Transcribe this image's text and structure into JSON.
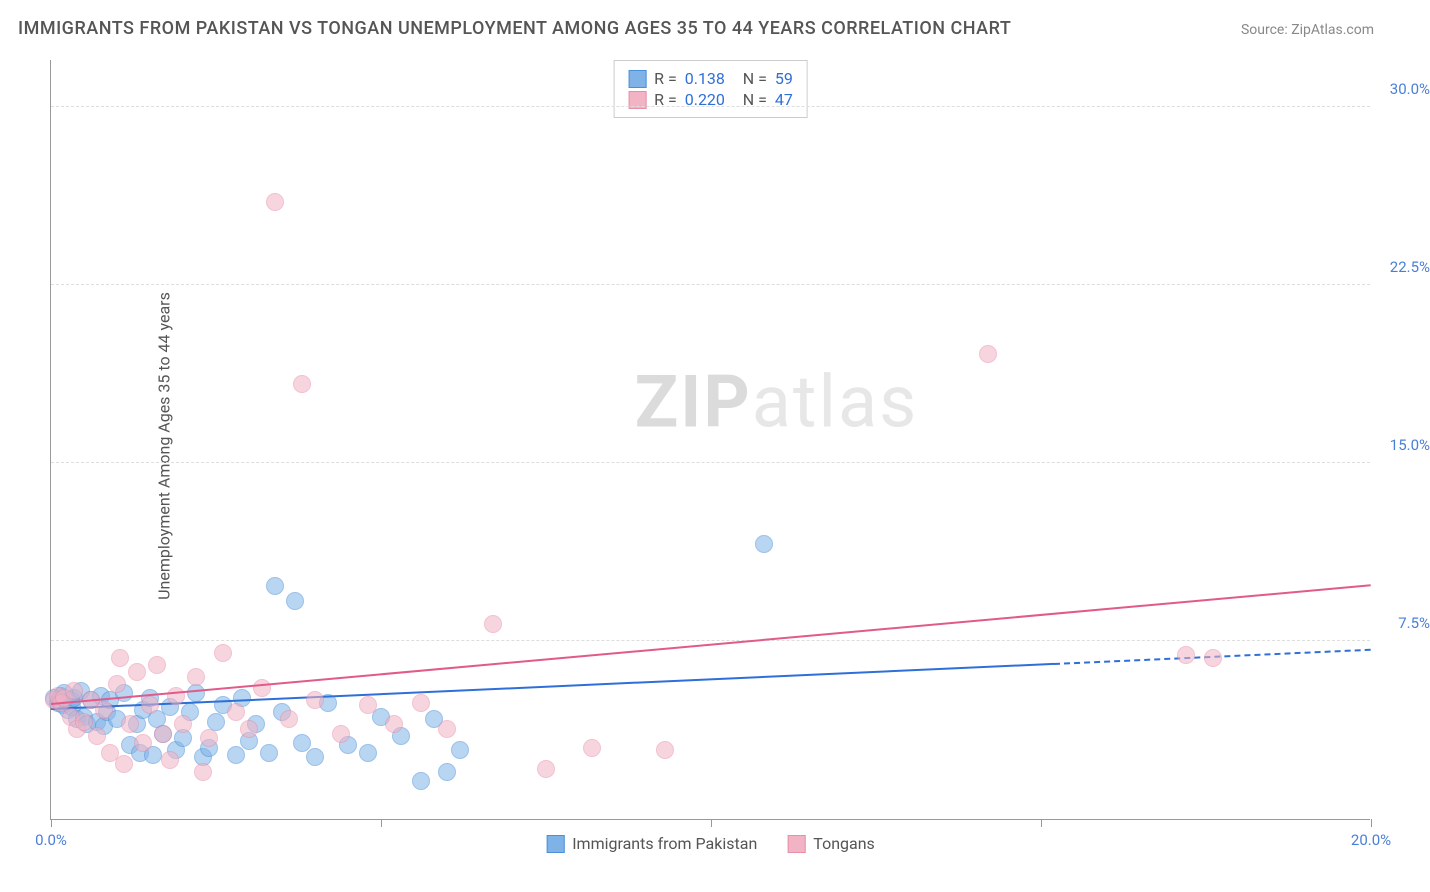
{
  "title": "IMMIGRANTS FROM PAKISTAN VS TONGAN UNEMPLOYMENT AMONG AGES 35 TO 44 YEARS CORRELATION CHART",
  "source": "Source: ZipAtlas.com",
  "ylabel": "Unemployment Among Ages 35 to 44 years",
  "watermark_bold": "ZIP",
  "watermark_light": "atlas",
  "chart": {
    "type": "scatter",
    "background_color": "#ffffff",
    "grid_color": "#dddddd",
    "axis_color": "#999999",
    "xlim": [
      0,
      20
    ],
    "ylim": [
      0,
      32
    ],
    "xticks": [
      0,
      5,
      10,
      15,
      20
    ],
    "xtick_labels": [
      "0.0%",
      "",
      "",
      "",
      "20.0%"
    ],
    "xtick_label_color": "#4a7fd8",
    "yticks": [
      7.5,
      15.0,
      22.5,
      30.0
    ],
    "ytick_labels": [
      "7.5%",
      "15.0%",
      "22.5%",
      "30.0%"
    ],
    "ytick_label_color": "#4a7fd8",
    "marker_radius": 9,
    "marker_opacity": 0.55,
    "series": [
      {
        "name": "Immigrants from Pakistan",
        "color": "#7fb3e8",
        "border": "#4a8fd8",
        "r_label": "R =",
        "r_value": "0.138",
        "n_label": "N =",
        "n_value": "59",
        "trend": {
          "x1": 0,
          "y1": 4.6,
          "x2": 15.2,
          "y2": 6.5,
          "color": "#2e6fd8"
        },
        "trend_dash": {
          "x1": 15.2,
          "y1": 6.5,
          "x2": 20,
          "y2": 7.1,
          "color": "#2e6fd8"
        },
        "points": [
          [
            0.05,
            5.1
          ],
          [
            0.1,
            4.9
          ],
          [
            0.12,
            5.0
          ],
          [
            0.15,
            5.2
          ],
          [
            0.18,
            4.8
          ],
          [
            0.2,
            5.3
          ],
          [
            0.25,
            4.6
          ],
          [
            0.3,
            5.0
          ],
          [
            0.32,
            4.7
          ],
          [
            0.35,
            5.1
          ],
          [
            0.4,
            4.2
          ],
          [
            0.45,
            5.4
          ],
          [
            0.5,
            4.3
          ],
          [
            0.55,
            4.0
          ],
          [
            0.6,
            5.0
          ],
          [
            0.7,
            4.1
          ],
          [
            0.75,
            5.2
          ],
          [
            0.8,
            3.9
          ],
          [
            0.85,
            4.5
          ],
          [
            0.9,
            5.0
          ],
          [
            1.0,
            4.2
          ],
          [
            1.1,
            5.3
          ],
          [
            1.2,
            3.1
          ],
          [
            1.3,
            4.0
          ],
          [
            1.35,
            2.8
          ],
          [
            1.4,
            4.6
          ],
          [
            1.5,
            5.1
          ],
          [
            1.55,
            2.7
          ],
          [
            1.6,
            4.2
          ],
          [
            1.7,
            3.6
          ],
          [
            1.8,
            4.7
          ],
          [
            1.9,
            2.9
          ],
          [
            2.0,
            3.4
          ],
          [
            2.1,
            4.5
          ],
          [
            2.2,
            5.3
          ],
          [
            2.3,
            2.6
          ],
          [
            2.4,
            3.0
          ],
          [
            2.5,
            4.1
          ],
          [
            2.6,
            4.8
          ],
          [
            2.8,
            2.7
          ],
          [
            2.9,
            5.1
          ],
          [
            3.0,
            3.3
          ],
          [
            3.1,
            4.0
          ],
          [
            3.3,
            2.8
          ],
          [
            3.4,
            9.8
          ],
          [
            3.5,
            4.5
          ],
          [
            3.7,
            9.2
          ],
          [
            3.8,
            3.2
          ],
          [
            4.0,
            2.6
          ],
          [
            4.2,
            4.9
          ],
          [
            4.5,
            3.1
          ],
          [
            4.8,
            2.8
          ],
          [
            5.0,
            4.3
          ],
          [
            5.3,
            3.5
          ],
          [
            5.6,
            1.6
          ],
          [
            5.8,
            4.2
          ],
          [
            6.0,
            2.0
          ],
          [
            6.2,
            2.9
          ],
          [
            10.8,
            11.6
          ]
        ]
      },
      {
        "name": "Tongans",
        "color": "#f2b4c4",
        "border": "#e88fa8",
        "r_label": "R =",
        "r_value": "0.220",
        "n_label": "N =",
        "n_value": "47",
        "trend": {
          "x1": 0,
          "y1": 4.8,
          "x2": 20,
          "y2": 9.8,
          "color": "#e05a8a"
        },
        "points": [
          [
            0.05,
            5.0
          ],
          [
            0.1,
            5.2
          ],
          [
            0.15,
            4.9
          ],
          [
            0.2,
            5.1
          ],
          [
            0.3,
            4.3
          ],
          [
            0.35,
            5.4
          ],
          [
            0.4,
            3.8
          ],
          [
            0.5,
            4.1
          ],
          [
            0.6,
            5.0
          ],
          [
            0.7,
            3.5
          ],
          [
            0.8,
            4.6
          ],
          [
            0.9,
            2.8
          ],
          [
            1.0,
            5.7
          ],
          [
            1.1,
            2.3
          ],
          [
            1.2,
            4.0
          ],
          [
            1.3,
            6.2
          ],
          [
            1.4,
            3.2
          ],
          [
            1.5,
            4.8
          ],
          [
            1.6,
            6.5
          ],
          [
            1.7,
            3.6
          ],
          [
            1.8,
            2.5
          ],
          [
            1.9,
            5.2
          ],
          [
            2.0,
            4.0
          ],
          [
            2.2,
            6.0
          ],
          [
            2.4,
            3.4
          ],
          [
            2.6,
            7.0
          ],
          [
            2.8,
            4.5
          ],
          [
            3.0,
            3.8
          ],
          [
            3.2,
            5.5
          ],
          [
            3.4,
            26.0
          ],
          [
            3.6,
            4.2
          ],
          [
            3.8,
            18.3
          ],
          [
            4.0,
            5.0
          ],
          [
            4.4,
            3.6
          ],
          [
            4.8,
            4.8
          ],
          [
            5.2,
            4.0
          ],
          [
            5.6,
            4.9
          ],
          [
            6.0,
            3.8
          ],
          [
            6.7,
            8.2
          ],
          [
            7.5,
            2.1
          ],
          [
            8.2,
            3.0
          ],
          [
            9.3,
            2.9
          ],
          [
            14.2,
            19.6
          ],
          [
            17.2,
            6.9
          ],
          [
            17.6,
            6.8
          ],
          [
            2.3,
            2.0
          ],
          [
            1.05,
            6.8
          ]
        ]
      }
    ],
    "bottom_legend": [
      {
        "label": "Immigrants from Pakistan",
        "fill": "#7fb3e8",
        "border": "#4a8fd8"
      },
      {
        "label": "Tongans",
        "fill": "#f2b4c4",
        "border": "#e88fa8"
      }
    ]
  }
}
